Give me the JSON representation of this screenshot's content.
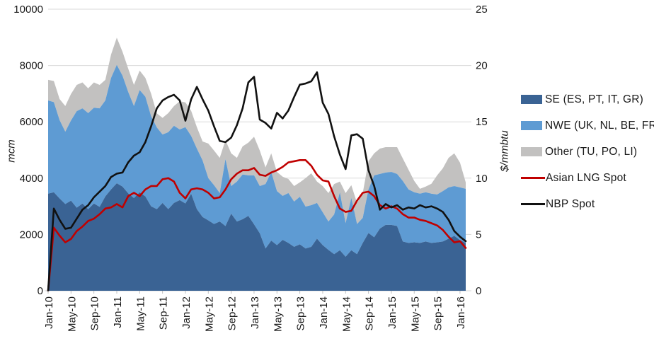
{
  "chart": {
    "left_axis": {
      "title": "mcm",
      "min": 0,
      "max": 10000,
      "tick_step": 2000,
      "tick_labels": [
        "0",
        "2000",
        "4000",
        "6000",
        "8000",
        "10000"
      ]
    },
    "right_axis": {
      "title": "$/mmbtu",
      "min": 0,
      "max": 25,
      "tick_step": 5,
      "tick_labels": [
        "0",
        "5",
        "10",
        "15",
        "20",
        "25"
      ]
    },
    "x_axis": {
      "tick_labels": [
        "Jan-10",
        "May-10",
        "Sep-10",
        "Jan-11",
        "May-11",
        "Sep-11",
        "Jan-12",
        "May-12",
        "Sep-12",
        "Jan-13",
        "May-13",
        "Sep-13",
        "Jan-14",
        "May-14",
        "Sep-14",
        "Jan-15",
        "May-15",
        "Sep-15",
        "Jan-16"
      ]
    },
    "colors": {
      "se": "#3A6394",
      "nwe": "#5E9BD3",
      "other": "#C2C1C0",
      "asian_lng": "#C00000",
      "nbp": "#111111",
      "gridline": "#D9D9D9",
      "axis_text": "#1a1a1a"
    },
    "legend": [
      {
        "label": "SE (ES, PT, IT, GR)",
        "type": "area",
        "color": "#3A6394"
      },
      {
        "label": "NWE (UK, NL, BE, FR)",
        "type": "area",
        "color": "#5E9BD3"
      },
      {
        "label": "Other (TU, PO, LI)",
        "type": "area",
        "color": "#C2C1C0"
      },
      {
        "label": "Asian LNG Spot",
        "type": "line",
        "color": "#C00000"
      },
      {
        "label": "NBP Spot",
        "type": "line",
        "color": "#111111"
      }
    ],
    "chart_data": {
      "type": "area",
      "subtype": "stacked-area-with-lines",
      "x": [
        "Jan-10",
        "Feb-10",
        "Mar-10",
        "Apr-10",
        "May-10",
        "Jun-10",
        "Jul-10",
        "Aug-10",
        "Sep-10",
        "Oct-10",
        "Nov-10",
        "Dec-10",
        "Jan-11",
        "Feb-11",
        "Mar-11",
        "Apr-11",
        "May-11",
        "Jun-11",
        "Jul-11",
        "Aug-11",
        "Sep-11",
        "Oct-11",
        "Nov-11",
        "Dec-11",
        "Jan-12",
        "Feb-12",
        "Mar-12",
        "Apr-12",
        "May-12",
        "Jun-12",
        "Jul-12",
        "Aug-12",
        "Sep-12",
        "Oct-12",
        "Nov-12",
        "Dec-12",
        "Jan-13",
        "Feb-13",
        "Mar-13",
        "Apr-13",
        "May-13",
        "Jun-13",
        "Jul-13",
        "Aug-13",
        "Sep-13",
        "Oct-13",
        "Nov-13",
        "Dec-13",
        "Jan-14",
        "Feb-14",
        "Mar-14",
        "Apr-14",
        "May-14",
        "Jun-14",
        "Jul-14",
        "Aug-14",
        "Sep-14",
        "Oct-14",
        "Nov-14",
        "Dec-14",
        "Jan-15",
        "Feb-15",
        "Mar-15",
        "Apr-15",
        "May-15",
        "Jun-15",
        "Jul-15",
        "Aug-15",
        "Sep-15",
        "Oct-15",
        "Nov-15",
        "Dec-15",
        "Jan-16",
        "Feb-16"
      ],
      "stacked_area_series": [
        {
          "name": "SE (ES, PT, IT, GR)",
          "axis": "left",
          "units": "mcm",
          "values": [
            3450,
            3500,
            3280,
            3080,
            3200,
            2950,
            3100,
            2900,
            3100,
            2980,
            3350,
            3600,
            3820,
            3700,
            3460,
            3290,
            3500,
            3350,
            3000,
            2900,
            3120,
            2900,
            3120,
            3220,
            3100,
            3450,
            2900,
            2620,
            2500,
            2370,
            2460,
            2300,
            2740,
            2460,
            2540,
            2660,
            2360,
            2040,
            1500,
            1780,
            1620,
            1810,
            1700,
            1560,
            1650,
            1500,
            1560,
            1850,
            1620,
            1450,
            1300,
            1440,
            1210,
            1440,
            1300,
            1700,
            2050,
            1900,
            2210,
            2340,
            2340,
            2300,
            1750,
            1700,
            1720,
            1700,
            1750,
            1700,
            1720,
            1750,
            1850,
            1950,
            1800,
            1700
          ]
        },
        {
          "name": "NWE (UK, NL, BE, FR)",
          "axis": "left",
          "units": "mcm",
          "values": [
            3310,
            3200,
            2780,
            2570,
            2850,
            3430,
            3380,
            3410,
            3400,
            3500,
            3410,
            3960,
            4200,
            3940,
            3600,
            3270,
            3630,
            3540,
            3200,
            2900,
            2430,
            2730,
            2740,
            2510,
            2710,
            2050,
            2150,
            2010,
            1500,
            1380,
            1010,
            2380,
            980,
            1420,
            1590,
            1440,
            1740,
            1680,
            2290,
            2440,
            1920,
            1560,
            1770,
            1610,
            1690,
            1490,
            1480,
            1270,
            1170,
            1010,
            1410,
            2060,
            1190,
            1860,
            1070,
            890,
            1550,
            2200,
            1940,
            1860,
            1880,
            1850,
            2150,
            1900,
            1780,
            1750,
            1750,
            1750,
            1700,
            1790,
            1820,
            1770,
            1870,
            1920
          ]
        },
        {
          "name": "Other (TU, PO, LI)",
          "axis": "left",
          "units": "mcm",
          "values": [
            730,
            750,
            750,
            910,
            940,
            930,
            920,
            880,
            900,
            830,
            730,
            830,
            970,
            850,
            830,
            750,
            690,
            670,
            800,
            500,
            590,
            680,
            700,
            1000,
            880,
            890,
            760,
            670,
            1230,
            1230,
            1250,
            670,
            1160,
            840,
            1000,
            1160,
            1370,
            1260,
            590,
            660,
            680,
            680,
            500,
            550,
            510,
            1010,
            1130,
            760,
            930,
            1010,
            1080,
            380,
            1070,
            450,
            750,
            880,
            1000,
            780,
            900,
            900,
            880,
            950,
            800,
            700,
            400,
            170,
            200,
            350,
            680,
            810,
            1050,
            1160,
            880,
            230
          ]
        }
      ],
      "line_series": [
        {
          "name": "Asian LNG Spot",
          "axis": "right",
          "units": "$/mmbtu",
          "values": [
            0,
            5.6,
            4.9,
            4.3,
            4.6,
            5.3,
            5.7,
            6.2,
            6.4,
            6.8,
            7.3,
            7.4,
            7.7,
            7.4,
            8.4,
            8.7,
            8.4,
            9.0,
            9.3,
            9.3,
            9.9,
            10.0,
            9.7,
            8.7,
            8.2,
            9.0,
            9.1,
            9.0,
            8.7,
            8.2,
            8.3,
            9.0,
            9.9,
            10.4,
            10.7,
            10.7,
            10.9,
            10.3,
            10.2,
            10.5,
            10.7,
            11.0,
            11.4,
            11.5,
            11.6,
            11.6,
            11.1,
            10.3,
            9.8,
            9.7,
            8.4,
            7.3,
            7.0,
            7.1,
            8.0,
            8.7,
            8.8,
            8.4,
            7.6,
            7.3,
            7.5,
            7.3,
            6.8,
            6.5,
            6.5,
            6.3,
            6.2,
            6.0,
            5.8,
            5.4,
            4.8,
            4.3,
            4.4,
            3.8
          ]
        },
        {
          "name": "NBP Spot",
          "axis": "right",
          "units": "$/mmbtu",
          "values": [
            0,
            7.3,
            6.3,
            5.5,
            5.6,
            6.4,
            7.2,
            7.6,
            8.3,
            8.8,
            9.3,
            10.1,
            10.4,
            10.5,
            11.4,
            12.0,
            12.3,
            13.2,
            14.6,
            16.2,
            16.9,
            17.2,
            17.4,
            16.9,
            15.1,
            17.0,
            18.1,
            17.0,
            16.0,
            14.6,
            13.3,
            13.2,
            13.6,
            14.7,
            16.2,
            18.5,
            19.0,
            15.2,
            14.9,
            14.4,
            15.8,
            15.3,
            16.0,
            17.2,
            18.3,
            18.4,
            18.6,
            19.4,
            16.7,
            15.7,
            13.7,
            12.1,
            10.8,
            13.8,
            13.9,
            13.5,
            10.7,
            9.3,
            7.2,
            7.7,
            7.4,
            7.6,
            7.2,
            7.4,
            7.3,
            7.6,
            7.4,
            7.5,
            7.3,
            7.0,
            6.3,
            5.3,
            4.8,
            4.4
          ]
        }
      ],
      "title": "",
      "xlabel": "",
      "ylabel_left": "mcm",
      "ylabel_right": "$/mmbtu",
      "ylim_left": [
        0,
        10000
      ],
      "ylim_right": [
        0,
        25
      ],
      "grid": "horizontal",
      "legend_position": "right"
    }
  }
}
